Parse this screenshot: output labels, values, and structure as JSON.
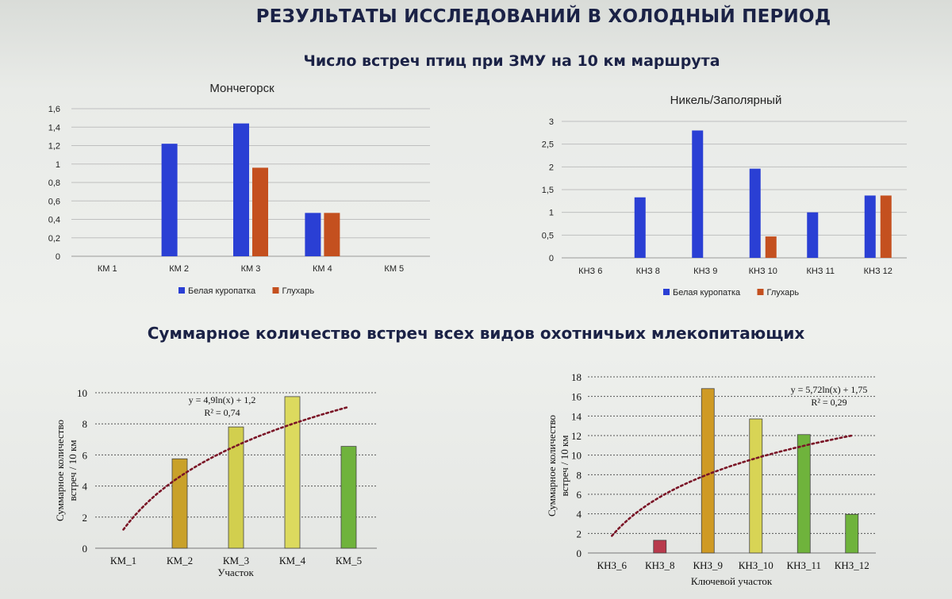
{
  "header": {
    "title": "РЕЗУЛЬТАТЫ ИССЛЕДОВАНИЙ В ХОЛОДНЫЙ ПЕРИОД",
    "subtitle_top": "Число встреч птиц при ЗМУ на 10 км маршрута",
    "subtitle_bottom": "Суммарное количество встреч всех видов охотничьих млекопитающих"
  },
  "colors": {
    "blue": "#2a3fd4",
    "orange": "#c4501f",
    "grid": "#bfbfbf"
  },
  "chart_data": [
    {
      "type": "bar",
      "title": "Мончегорск",
      "categories": [
        "КМ 1",
        "КМ 2",
        "КМ 3",
        "КМ 4",
        "КМ 5"
      ],
      "series": [
        {
          "name": "Белая куропатка",
          "values": [
            0,
            1.22,
            1.44,
            0.47,
            0
          ]
        },
        {
          "name": "Глухарь",
          "values": [
            0,
            0,
            0.96,
            0.47,
            0
          ]
        }
      ],
      "ylim": [
        0,
        1.6
      ],
      "yticks": [
        "0",
        "0,2",
        "0,4",
        "0,6",
        "0,8",
        "1",
        "1,2",
        "1,4",
        "1,6"
      ],
      "grid": true,
      "legend": "bottom"
    },
    {
      "type": "bar",
      "title": "Никель/Заполярный",
      "categories": [
        "КНЗ 6",
        "КНЗ 8",
        "КНЗ 9",
        "КНЗ 10",
        "КНЗ 11",
        "КНЗ 12"
      ],
      "series": [
        {
          "name": "Белая куропатка",
          "values": [
            0,
            1.33,
            2.8,
            1.96,
            1.0,
            1.37
          ]
        },
        {
          "name": "Глухарь",
          "values": [
            0,
            0,
            0,
            0.47,
            0,
            1.37
          ]
        }
      ],
      "ylim": [
        0,
        3
      ],
      "yticks": [
        "0",
        "0,5",
        "1",
        "1,5",
        "2",
        "2,5",
        "3"
      ],
      "grid": true,
      "legend": "bottom"
    },
    {
      "type": "bar",
      "categories": [
        "КМ_1",
        "КМ_2",
        "КМ_3",
        "КМ_4",
        "КМ_5"
      ],
      "values": [
        0,
        5.75,
        7.8,
        9.75,
        6.55
      ],
      "bar_colors": [
        "#c9a12a",
        "#c9a12a",
        "#d2cf4e",
        "#dcda5e",
        "#6fb33c"
      ],
      "ylim": [
        0,
        10
      ],
      "yticks": [
        "0",
        "2",
        "4",
        "6",
        "8",
        "10"
      ],
      "xlabel": "Участок",
      "ylabel": [
        "Суммарное количество",
        "встреч / 10 км"
      ],
      "trendline": {
        "type": "log",
        "a": 4.9,
        "b": 1.2,
        "equation": "y = 4,9ln(x) + 1,2",
        "r2": "R² = 0,74"
      },
      "grid": true
    },
    {
      "type": "bar",
      "categories": [
        "КНЗ_6",
        "КНЗ_8",
        "КНЗ_9",
        "КНЗ_10",
        "КНЗ_11",
        "КНЗ_12"
      ],
      "values": [
        0,
        1.3,
        16.8,
        13.7,
        12.1,
        3.95
      ],
      "bar_colors": [
        "#b83a4c",
        "#b83a4c",
        "#cf9a24",
        "#d8d455",
        "#6fb33c",
        "#6fb33c"
      ],
      "ylim": [
        0,
        18
      ],
      "yticks": [
        "0",
        "2",
        "4",
        "6",
        "8",
        "10",
        "12",
        "14",
        "16",
        "18"
      ],
      "xlabel": "Ключевой участок",
      "ylabel": [
        "Суммарное количество",
        "встреч / 10 км"
      ],
      "trendline": {
        "type": "log",
        "a": 5.72,
        "b": 1.75,
        "equation": "y = 5,72ln(x) + 1,75",
        "r2": "R² = 0,29"
      },
      "grid": true
    }
  ]
}
